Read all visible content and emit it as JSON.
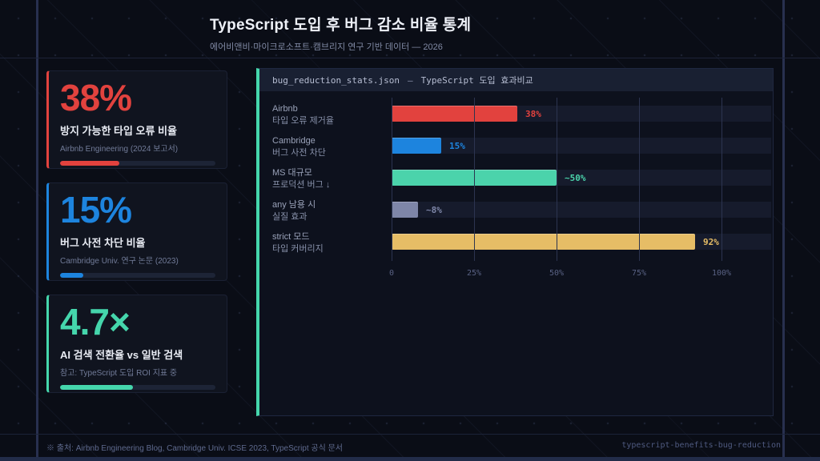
{
  "page": {
    "title": "TypeScript 도입 후 버그 감소 비율 통계",
    "subtitle": "에어비앤비·마이크로소프트·캠브리지 연구 기반 데이터 — 2026",
    "footer_left": "※ 출처: Airbnb Engineering Blog, Cambridge Univ. ICSE 2023, TypeScript 공식 문서",
    "footer_right": "typescript-benefits-bug-reduction"
  },
  "colors": {
    "red": "#e2423e",
    "blue": "#1d84de",
    "teal": "#4bd3ab",
    "gray": "#7e86a8",
    "gold": "#e6bd66",
    "panel_accent": "#45d6ac"
  },
  "cards": [
    {
      "value": "38%",
      "label": "방지 가능한 타입 오류 비율",
      "source": "Airbnb Engineering (2024 보고서)",
      "color": "#e2423e",
      "progress": 38
    },
    {
      "value": "15%",
      "label": "버그 사전 차단 비율",
      "source": "Cambridge Univ. 연구 논문 (2023)",
      "color": "#1d84de",
      "progress": 15
    },
    {
      "value": "4.7×",
      "label": "AI 검색 전환율 vs 일반 검색",
      "source": "참고: TypeScript 도입 ROI 지표 중",
      "color": "#45d6ac",
      "progress": 47
    }
  ],
  "panel_header": {
    "filename": "bug_reduction_stats.json",
    "separator": "—",
    "title": "TypeScript 도입 효과비교"
  },
  "chart_data": {
    "type": "bar",
    "orientation": "horizontal",
    "title": "TypeScript 도입 효과비교",
    "categories": [
      "Airbnb / 타입 오류 제거율",
      "Cambridge / 버그 사전 차단",
      "MS 대규모 / 프로덕션 버그 ↓",
      "any 남용 시 / 실질 효과",
      "strict 모드 / 타입 커버리지"
    ],
    "values": [
      38,
      15,
      50,
      8,
      92
    ],
    "rows": [
      {
        "label_line1": "Airbnb",
        "label_line2": "타입 오류 제거율",
        "value": 38,
        "value_label": "38%",
        "color": "#e2423e"
      },
      {
        "label_line1": "Cambridge",
        "label_line2": "버그 사전 차단",
        "value": 15,
        "value_label": "15%",
        "color": "#1d84de"
      },
      {
        "label_line1": "MS 대규모",
        "label_line2": "프로덕션 버그 ↓",
        "value": 50,
        "value_label": "~50%",
        "color": "#4bd3ab"
      },
      {
        "label_line1": "any 남용 시",
        "label_line2": "실질 효과",
        "value": 8,
        "value_label": "~8%",
        "color": "#7e86a8"
      },
      {
        "label_line1": "strict 모드",
        "label_line2": "타입 커버리지",
        "value": 92,
        "value_label": "92%",
        "color": "#e6bd66"
      }
    ],
    "xlim": [
      0,
      100
    ],
    "x_tick_values": [
      0,
      25,
      50,
      75,
      100
    ],
    "x_ticks": [
      "0",
      "25%",
      "50%",
      "75%",
      "100%"
    ],
    "grid": true,
    "legend": false
  }
}
